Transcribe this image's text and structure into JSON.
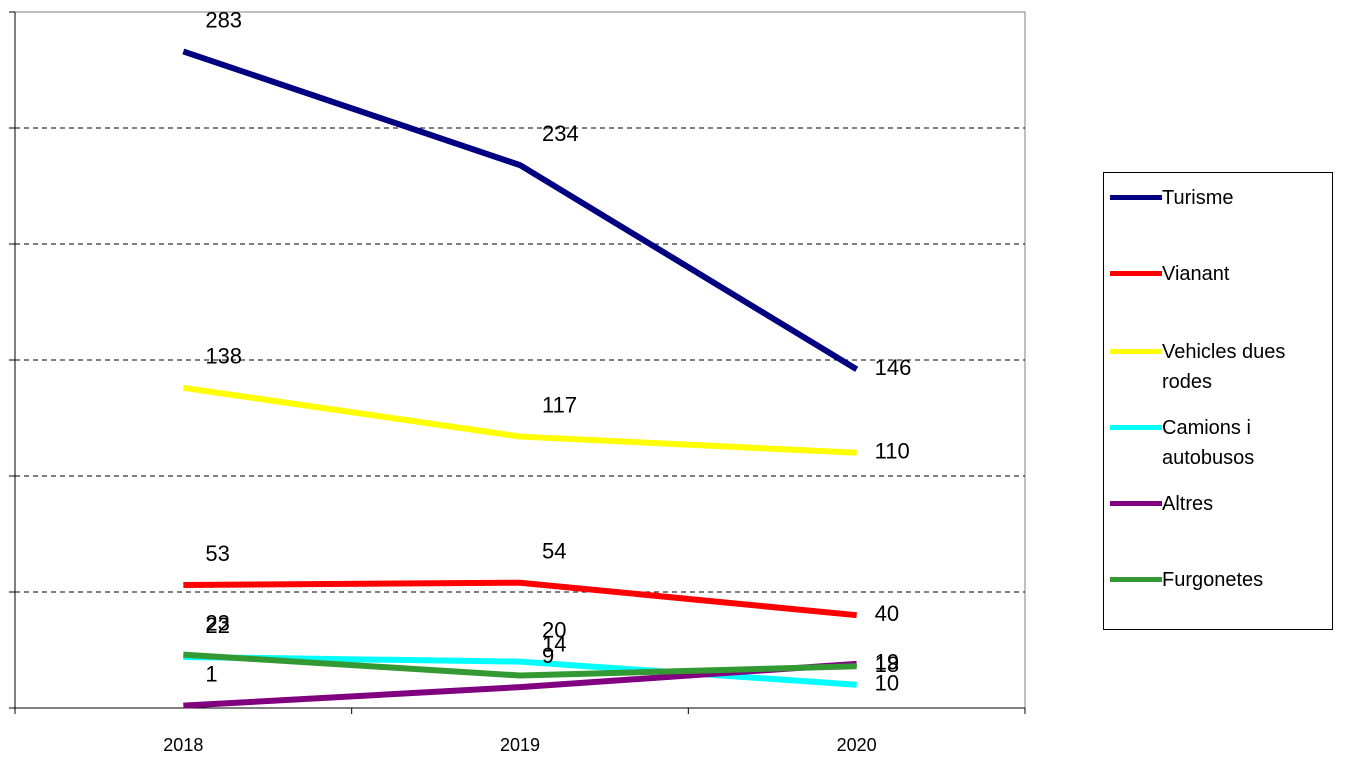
{
  "chart_data": {
    "type": "line",
    "categories": [
      "2018",
      "2019",
      "2020"
    ],
    "series": [
      {
        "name": "Turisme",
        "color": "#000080",
        "values": [
          283,
          234,
          146
        ]
      },
      {
        "name": "Vianant",
        "color": "#ff0000",
        "values": [
          53,
          54,
          40
        ]
      },
      {
        "name": "Vehicles dues rodes",
        "color": "#ffff00",
        "values": [
          138,
          117,
          110
        ]
      },
      {
        "name": "Camions i autobusos",
        "color": "#00ffff",
        "values": [
          22,
          20,
          10
        ]
      },
      {
        "name": "Altres",
        "color": "#800080",
        "values": [
          1,
          9,
          19
        ]
      },
      {
        "name": "Furgonetes",
        "color": "#339933",
        "values": [
          23,
          14,
          18
        ]
      }
    ],
    "ylim": [
      0,
      300
    ],
    "yticks": [
      0,
      50,
      100,
      150,
      200,
      250,
      300
    ],
    "grid": true
  }
}
